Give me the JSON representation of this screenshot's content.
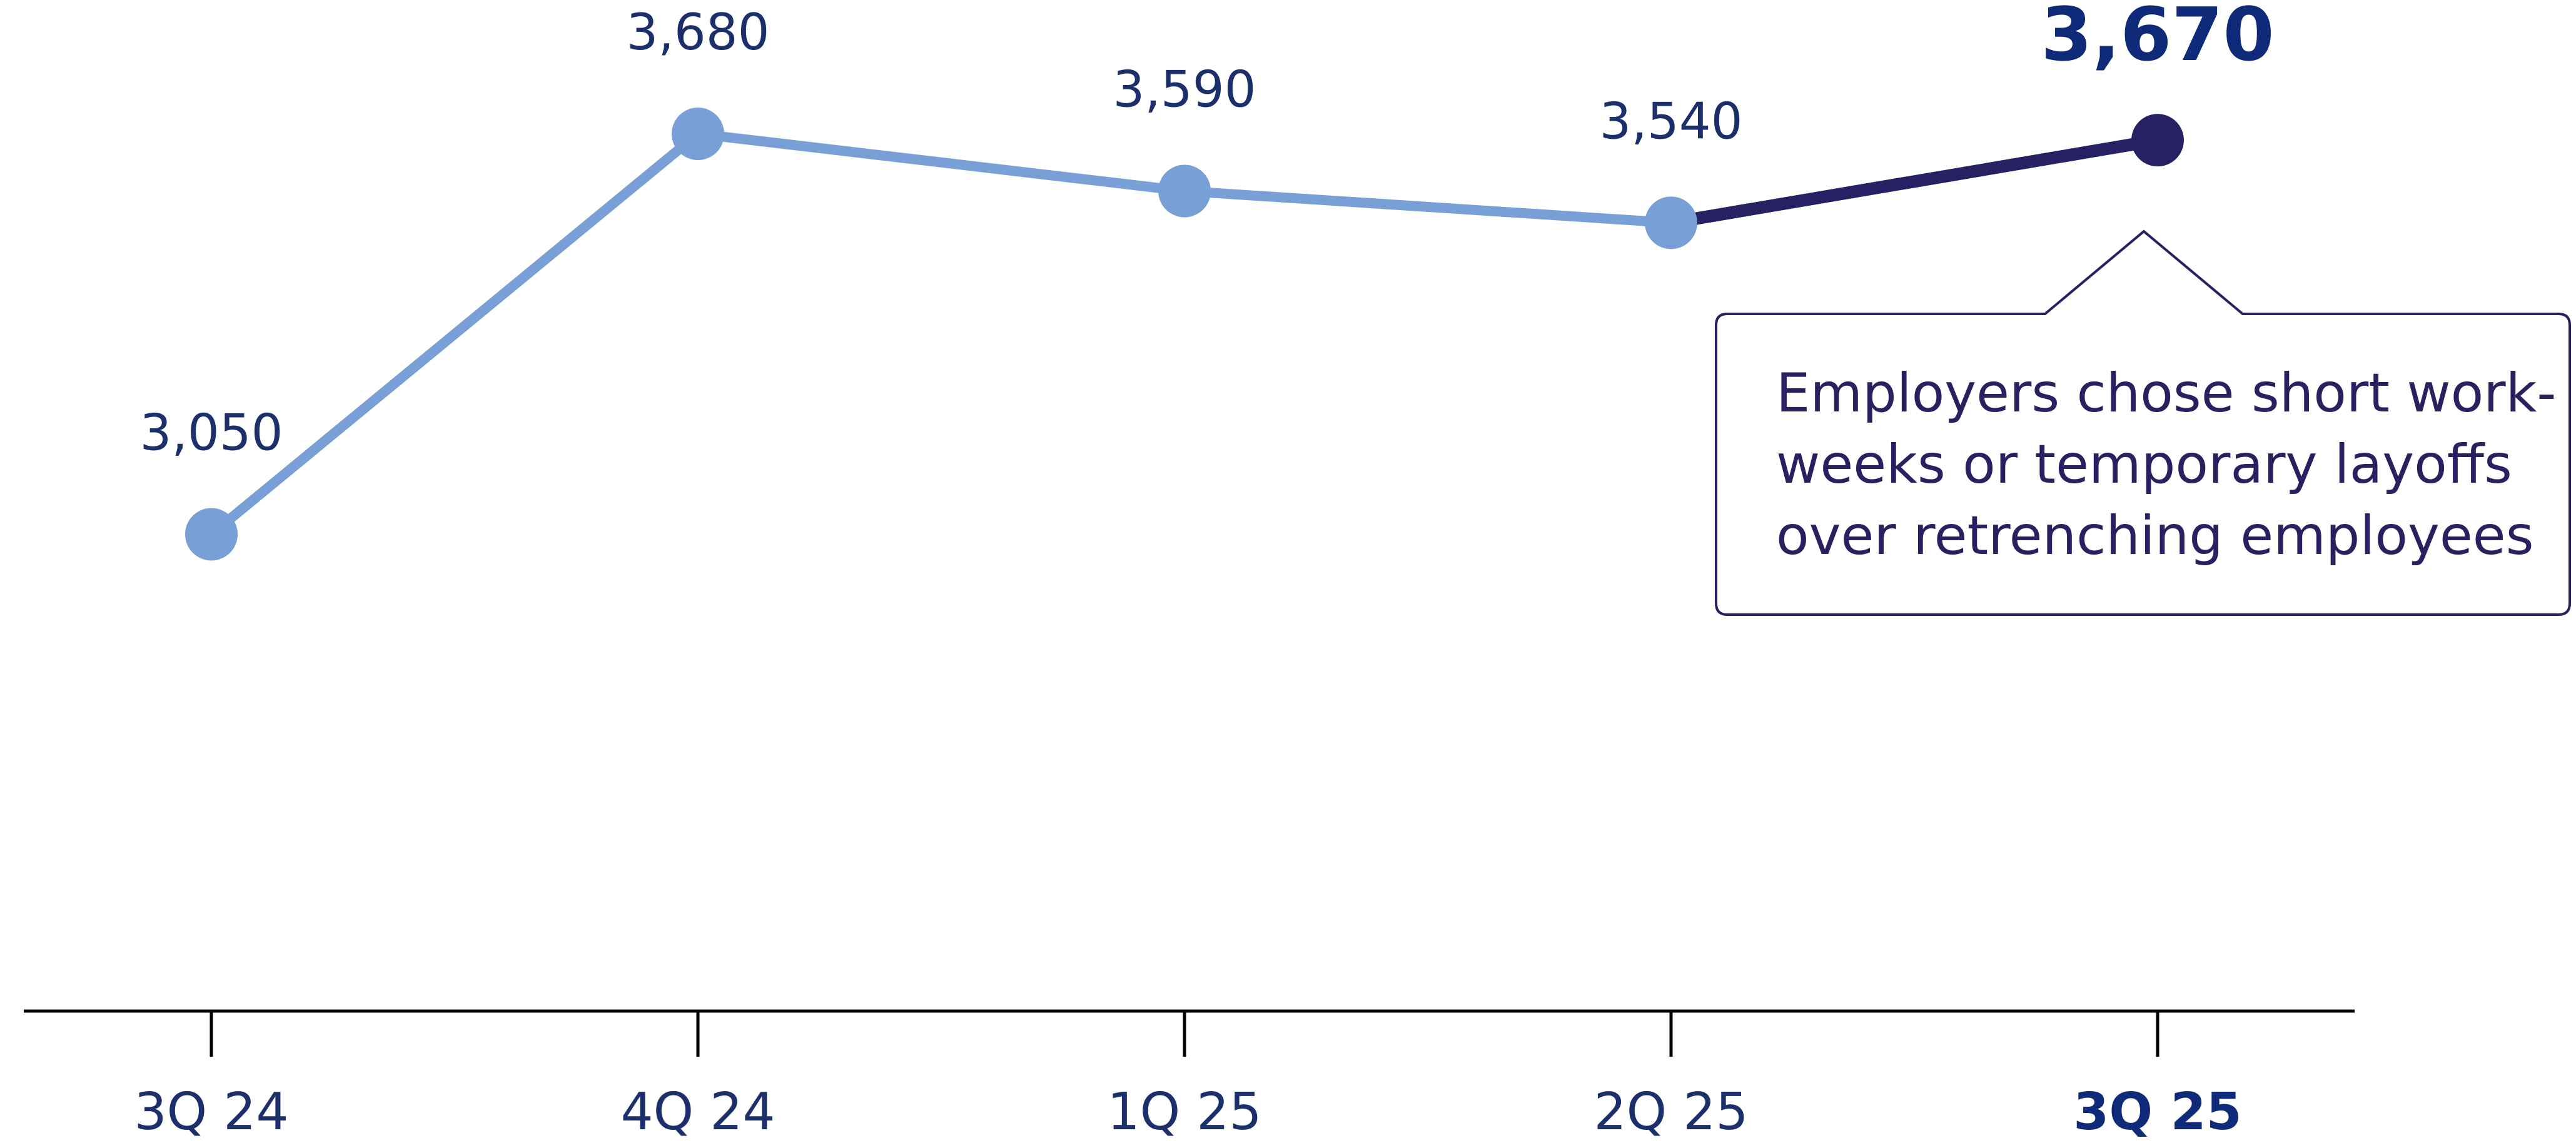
{
  "chart_data": {
    "type": "line",
    "categories": [
      "3Q 24",
      "4Q 24",
      "1Q 25",
      "2Q 25",
      "3Q 25"
    ],
    "series": [
      {
        "values": [
          3050,
          3680,
          3590,
          3540,
          3670
        ]
      }
    ],
    "data_labels": [
      "3,050",
      "3,680",
      "3,590",
      "3,540",
      "3,670"
    ],
    "highlight_index": 4,
    "ylim": [
      2300,
      3800
    ],
    "colors": {
      "line": "#789fd6",
      "highlight": "#262162",
      "text": "#1b2f6b",
      "axis": "#000000"
    },
    "annotation": {
      "lines": [
        "Employers chose short work-",
        "weeks or temporary layoffs",
        "over retrenching employees"
      ]
    },
    "grid": false,
    "legend": "none"
  }
}
